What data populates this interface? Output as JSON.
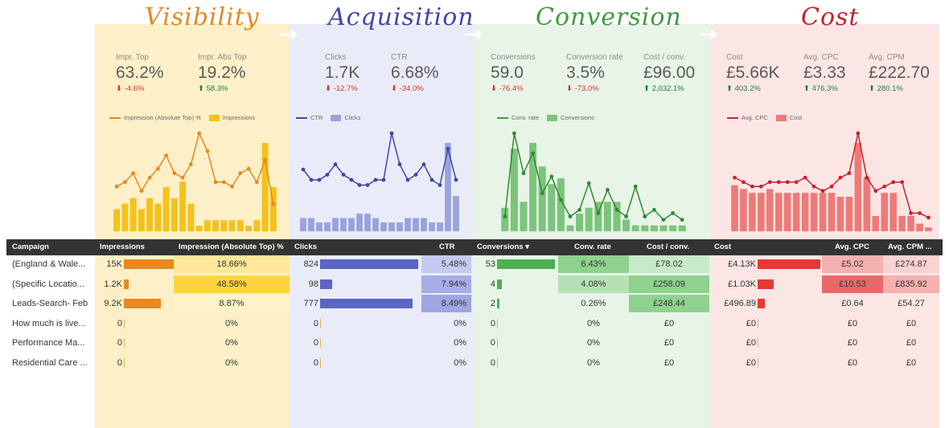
{
  "colors": {
    "visibility": "#e8881f",
    "acquisition": "#3c48a8",
    "conversion": "#3e9a3e",
    "cost": "#c8202a"
  },
  "sections": [
    {
      "title": "Visibility",
      "kpis": [
        {
          "label": "Impr. Top",
          "value": "63.2%",
          "delta": "-4.6%",
          "dir": "down"
        },
        {
          "label": "Impr. Abs Top",
          "value": "19.2%",
          "delta": "58.3%",
          "dir": "up"
        }
      ],
      "legend": {
        "line": "Impression (Absolute Top) %",
        "bar": "Impressions"
      }
    },
    {
      "title": "Acquisition",
      "kpis": [
        {
          "label": "Clicks",
          "value": "1.7K",
          "delta": "-12.7%",
          "dir": "down"
        },
        {
          "label": "CTR",
          "value": "6.68%",
          "delta": "-34.0%",
          "dir": "down"
        }
      ],
      "legend": {
        "line": "CTR",
        "bar": "Clicks"
      }
    },
    {
      "title": "Conversion",
      "kpis": [
        {
          "label": "Conversions",
          "value": "59.0",
          "delta": "-76.4%",
          "dir": "down"
        },
        {
          "label": "Conversion rate",
          "value": "3.5%",
          "delta": "-73.0%",
          "dir": "down"
        },
        {
          "label": "Cost / conv.",
          "value": "£96.00",
          "delta": "2,032.1%",
          "dir": "up"
        }
      ],
      "legend": {
        "line": "Conv. rate",
        "bar": "Conversions"
      }
    },
    {
      "title": "Cost",
      "kpis": [
        {
          "label": "Cost",
          "value": "£5.66K",
          "delta": "403.2%",
          "dir": "up"
        },
        {
          "label": "Avg. CPC",
          "value": "£3.33",
          "delta": "476.3%",
          "dir": "up"
        },
        {
          "label": "Avg. CPM",
          "value": "£222.70",
          "delta": "280.1%",
          "dir": "up"
        }
      ],
      "legend": {
        "line": "Avg. CPC",
        "bar": "Cost"
      }
    }
  ],
  "chart_data": [
    {
      "type": "bar",
      "title": "",
      "series": [
        {
          "name": "Impressions",
          "kind": "bar",
          "values": [
            4,
            5,
            6,
            4,
            6,
            5,
            8,
            6,
            9,
            5,
            1,
            2,
            2,
            2,
            2,
            2,
            1,
            2,
            16,
            8
          ]
        },
        {
          "name": "Impression (Absolute Top) %",
          "kind": "line",
          "values": [
            9,
            10,
            12,
            8,
            11,
            13,
            16,
            12,
            11,
            14,
            21,
            17,
            10,
            10,
            9,
            12,
            13,
            10,
            15,
            5
          ]
        }
      ]
    },
    {
      "type": "bar",
      "title": "",
      "series": [
        {
          "name": "Clicks",
          "kind": "bar",
          "values": [
            3,
            3,
            2,
            2,
            3,
            3,
            3,
            4,
            4,
            3,
            2,
            2,
            2,
            3,
            3,
            3,
            2,
            2,
            20,
            8
          ]
        },
        {
          "name": "CTR",
          "kind": "line",
          "values": [
            11,
            9,
            9,
            10,
            12,
            10,
            9,
            8,
            8,
            9,
            9,
            18,
            12,
            9,
            10,
            12,
            9,
            8,
            15,
            9
          ]
        }
      ]
    },
    {
      "type": "bar",
      "title": "",
      "series": [
        {
          "name": "Conversions",
          "kind": "bar",
          "values": [
            4,
            14,
            5,
            15,
            11,
            8,
            9,
            1,
            3,
            4,
            5,
            5,
            5,
            2,
            1,
            1,
            1,
            1,
            1,
            1
          ]
        },
        {
          "name": "Conv. rate",
          "kind": "line",
          "values": [
            3,
            28,
            16,
            22,
            10,
            15,
            8,
            3,
            5,
            13,
            4,
            11,
            5,
            3,
            12,
            3,
            5,
            2,
            4,
            2
          ]
        }
      ]
    },
    {
      "type": "bar",
      "title": "",
      "series": [
        {
          "name": "Cost",
          "kind": "bar",
          "values": [
            12,
            11,
            10,
            10,
            11,
            10,
            10,
            10,
            10,
            10,
            10,
            10,
            9,
            9,
            23,
            14,
            4,
            10,
            10,
            4,
            4,
            2,
            1
          ]
        },
        {
          "name": "Avg. CPC",
          "kind": "line",
          "values": [
            11,
            10,
            9,
            9,
            10,
            10,
            10,
            10,
            11,
            9,
            8,
            9,
            11,
            12,
            21,
            11,
            8,
            9,
            10,
            10,
            3,
            3,
            2
          ]
        }
      ]
    }
  ],
  "table": {
    "headers": {
      "campaign": "Campaign",
      "impressions": "Impressions",
      "abs_top": "Impression (Absolute Top) %",
      "clicks": "Clicks",
      "ctr": "CTR",
      "conversions": "Conversions",
      "sort_arrow": "▾",
      "conv_rate": "Conv. rate",
      "cost_conv": "Cost / conv.",
      "cost": "Cost",
      "avg_cpc": "Avg. CPC",
      "avg_cpm": "Avg. CPM ..."
    },
    "rows": [
      {
        "campaign": "(England & Wale...",
        "impressions": "15K",
        "imp_frac": 1.0,
        "abs_top": "18.66%",
        "clicks": "824",
        "clk_frac": 1.0,
        "ctr": "5.48%",
        "conversions": "53",
        "conv_frac": 1.0,
        "conv_rate": "6.43%",
        "cost_conv": "£78.02",
        "cost": "£4.13K",
        "cost_frac": 1.0,
        "avg_cpc": "£5.02",
        "avg_cpm": "£274.87"
      },
      {
        "campaign": "(Specific Locatio...",
        "impressions": "1.2K",
        "imp_frac": 0.08,
        "abs_top": "48.58%",
        "clicks": "98",
        "clk_frac": 0.12,
        "ctr": "7.94%",
        "conversions": "4",
        "conv_frac": 0.08,
        "conv_rate": "4.08%",
        "cost_conv": "£258.09",
        "cost": "£1.03K",
        "cost_frac": 0.25,
        "avg_cpc": "£10.53",
        "avg_cpm": "£835.92"
      },
      {
        "campaign": "Leads-Search- Feb",
        "impressions": "9.2K",
        "imp_frac": 0.61,
        "abs_top": "8.87%",
        "clicks": "777",
        "clk_frac": 0.94,
        "ctr": "8.49%",
        "conversions": "2",
        "conv_frac": 0.04,
        "conv_rate": "0.26%",
        "cost_conv": "£248.44",
        "cost": "£496.89",
        "cost_frac": 0.12,
        "avg_cpc": "£0.64",
        "avg_cpm": "£54.27"
      },
      {
        "campaign": "How much is live...",
        "impressions": "0",
        "imp_frac": 0,
        "abs_top": "0%",
        "clicks": "0",
        "clk_frac": 0,
        "ctr": "0%",
        "conversions": "0",
        "conv_frac": 0,
        "conv_rate": "0%",
        "cost_conv": "£0",
        "cost": "£0",
        "cost_frac": 0,
        "avg_cpc": "£0",
        "avg_cpm": "£0"
      },
      {
        "campaign": "Performance Ma...",
        "impressions": "0",
        "imp_frac": 0,
        "abs_top": "0%",
        "clicks": "0",
        "clk_frac": 0,
        "ctr": "0%",
        "conversions": "0",
        "conv_frac": 0,
        "conv_rate": "0%",
        "cost_conv": "£0",
        "cost": "£0",
        "cost_frac": 0,
        "avg_cpc": "£0",
        "avg_cpm": "£0"
      },
      {
        "campaign": "Residential Care ...",
        "impressions": "0",
        "imp_frac": 0,
        "abs_top": "0%",
        "clicks": "0",
        "clk_frac": 0,
        "ctr": "0%",
        "conversions": "0",
        "conv_frac": 0,
        "conv_rate": "0%",
        "cost_conv": "£0",
        "cost": "£0",
        "cost_frac": 0,
        "avg_cpc": "£0",
        "avg_cpm": "£0"
      }
    ]
  }
}
